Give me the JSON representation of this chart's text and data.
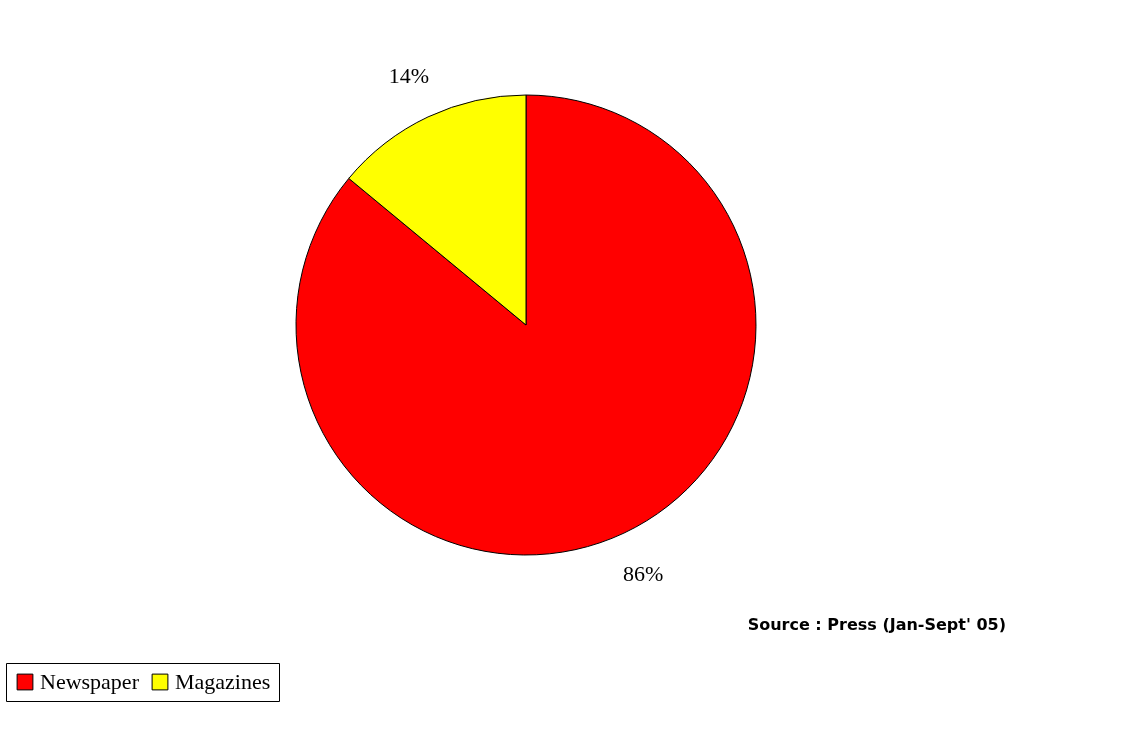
{
  "chart_data": {
    "type": "pie",
    "categories": [
      "Newspaper",
      "Magazines"
    ],
    "values": [
      86,
      14
    ],
    "colors": [
      "#ff0000",
      "#ffff00"
    ],
    "value_labels": [
      "86%",
      "14%"
    ],
    "legend": "bottom",
    "annotations": [
      "Source : Press (Jan-Sept' 05)"
    ]
  }
}
